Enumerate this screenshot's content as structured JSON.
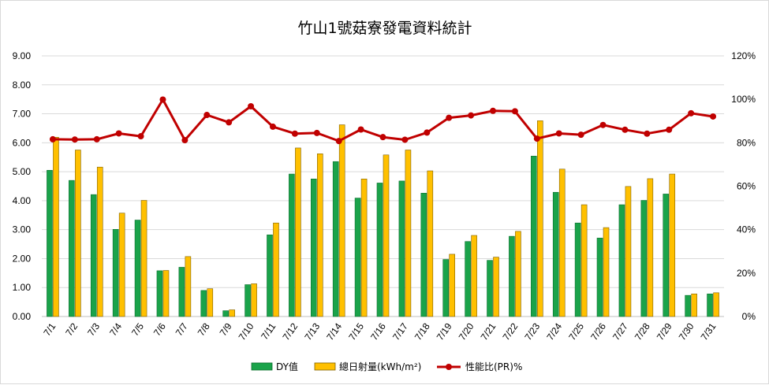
{
  "chart_data": {
    "type": "bar",
    "title": "竹山1號菇寮發電資料統計",
    "categories": [
      "7/1",
      "7/2",
      "7/3",
      "7/4",
      "7/5",
      "7/6",
      "7/7",
      "7/8",
      "7/9",
      "7/10",
      "7/11",
      "7/12",
      "7/13",
      "7/14",
      "7/15",
      "7/16",
      "7/17",
      "7/18",
      "7/19",
      "7/20",
      "7/21",
      "7/22",
      "7/23",
      "7/24",
      "7/25",
      "7/26",
      "7/27",
      "7/28",
      "7/29",
      "7/30",
      "7/31"
    ],
    "series": [
      {
        "name": "DY值",
        "type": "bar",
        "axis": "left",
        "color": "#1aa34a",
        "values": [
          5.05,
          4.7,
          4.21,
          3.01,
          3.33,
          1.58,
          1.7,
          0.9,
          0.2,
          1.1,
          2.82,
          4.92,
          4.75,
          5.35,
          4.09,
          4.61,
          4.68,
          4.26,
          1.97,
          2.59,
          1.94,
          2.77,
          5.54,
          4.29,
          3.23,
          2.71,
          3.86,
          4.01,
          4.23,
          0.73,
          0.78
        ]
      },
      {
        "name": "總日射量(kWh/m²)",
        "type": "bar",
        "axis": "left",
        "color": "#ffc000",
        "values": [
          6.19,
          5.75,
          5.16,
          3.57,
          4.01,
          1.59,
          2.07,
          0.96,
          0.23,
          1.13,
          3.23,
          5.82,
          5.62,
          6.62,
          4.75,
          5.58,
          5.75,
          5.03,
          2.15,
          2.8,
          2.05,
          2.94,
          6.76,
          5.09,
          3.86,
          3.07,
          4.49,
          4.76,
          4.92,
          0.78,
          0.82
        ]
      },
      {
        "name": "性能比(PR)%",
        "type": "line",
        "axis": "right",
        "color": "#c00000",
        "values": [
          81.6,
          81.5,
          81.6,
          84.3,
          83.0,
          99.9,
          81.2,
          92.8,
          89.4,
          96.8,
          87.4,
          84.2,
          84.5,
          80.8,
          86.1,
          82.6,
          81.4,
          84.7,
          91.5,
          92.6,
          94.7,
          94.5,
          81.9,
          84.3,
          83.7,
          88.2,
          86.0,
          84.2,
          86.0,
          93.6,
          92.1
        ]
      }
    ],
    "y_left": {
      "min": 0,
      "max": 9,
      "ticks": [
        "0.00",
        "1.00",
        "2.00",
        "3.00",
        "4.00",
        "5.00",
        "6.00",
        "7.00",
        "8.00",
        "9.00"
      ]
    },
    "y_right": {
      "min": 0,
      "max": 120,
      "ticks": [
        "0%",
        "20%",
        "40%",
        "60%",
        "80%",
        "100%",
        "120%"
      ]
    },
    "grid": true,
    "legend_position": "bottom"
  }
}
